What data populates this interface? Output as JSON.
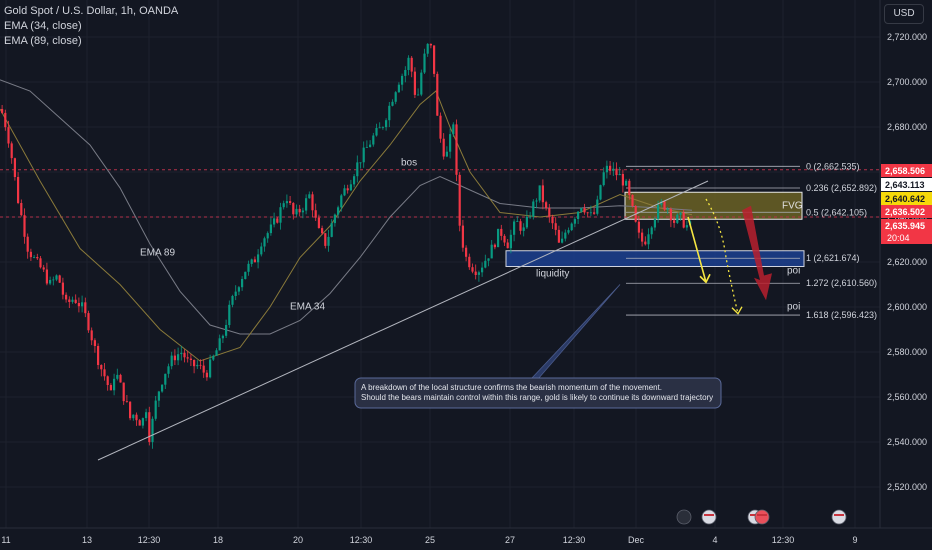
{
  "header": {
    "title": "Gold Spot / U.S. Dollar, 1h, OANDA",
    "indicators": [
      "EMA (34, close)",
      "EMA (89, close)"
    ],
    "currency_button": "USD"
  },
  "chart_data": {
    "type": "candlestick",
    "symbol": "Gold Spot / U.S. Dollar",
    "timeframe": "1h",
    "ylim": [
      2514,
      2730
    ],
    "y_ticks": [
      2520,
      2540,
      2560,
      2580,
      2600,
      2620,
      2640,
      2660,
      2680,
      2700,
      2720
    ],
    "y_tick_labels": [
      "2,520.000",
      "2,540.000",
      "2,560.000",
      "2,580.000",
      "2,600.000",
      "2,620.000",
      "2,640.000",
      "2,660.000",
      "2,680.000",
      "2,700.000",
      "2,720.000"
    ],
    "x_tick_labels": [
      "11",
      "13",
      "12:30",
      "18",
      "20",
      "12:30",
      "25",
      "27",
      "12:30",
      "Dec",
      "4",
      "12:30",
      "9"
    ],
    "price_anchors": [
      [
        0,
        2688
      ],
      [
        5,
        2686
      ],
      [
        12,
        2672
      ],
      [
        20,
        2648
      ],
      [
        30,
        2626
      ],
      [
        38,
        2620
      ],
      [
        45,
        2616
      ],
      [
        52,
        2610
      ],
      [
        60,
        2614
      ],
      [
        68,
        2601
      ],
      [
        76,
        2604
      ],
      [
        84,
        2600
      ],
      [
        90,
        2593
      ],
      [
        96,
        2583
      ],
      [
        102,
        2574
      ],
      [
        108,
        2568
      ],
      [
        113,
        2561
      ],
      [
        117,
        2572
      ],
      [
        121,
        2567
      ],
      [
        126,
        2560
      ],
      [
        130,
        2555
      ],
      [
        133,
        2549
      ],
      [
        136,
        2553
      ],
      [
        140,
        2550
      ],
      [
        144,
        2548
      ],
      [
        148,
        2556
      ],
      [
        152,
        2540
      ],
      [
        156,
        2554
      ],
      [
        162,
        2565
      ],
      [
        168,
        2572
      ],
      [
        176,
        2578
      ],
      [
        184,
        2580
      ],
      [
        192,
        2574
      ],
      [
        200,
        2574
      ],
      [
        208,
        2570
      ],
      [
        216,
        2578
      ],
      [
        224,
        2586
      ],
      [
        232,
        2600
      ],
      [
        240,
        2610
      ],
      [
        248,
        2617
      ],
      [
        256,
        2620
      ],
      [
        264,
        2630
      ],
      [
        272,
        2634
      ],
      [
        280,
        2640
      ],
      [
        288,
        2650
      ],
      [
        296,
        2640
      ],
      [
        304,
        2644
      ],
      [
        312,
        2650
      ],
      [
        320,
        2634
      ],
      [
        328,
        2628
      ],
      [
        336,
        2640
      ],
      [
        344,
        2650
      ],
      [
        352,
        2656
      ],
      [
        360,
        2664
      ],
      [
        368,
        2670
      ],
      [
        376,
        2676
      ],
      [
        384,
        2680
      ],
      [
        392,
        2690
      ],
      [
        400,
        2700
      ],
      [
        408,
        2706
      ],
      [
        412,
        2712
      ],
      [
        416,
        2696
      ],
      [
        420,
        2694
      ],
      [
        424,
        2706
      ],
      [
        428,
        2714
      ],
      [
        432,
        2718
      ],
      [
        436,
        2706
      ],
      [
        440,
        2680
      ],
      [
        444,
        2672
      ],
      [
        448,
        2666
      ],
      [
        452,
        2674
      ],
      [
        456,
        2684
      ],
      [
        460,
        2642
      ],
      [
        464,
        2630
      ],
      [
        468,
        2622
      ],
      [
        474,
        2618
      ],
      [
        480,
        2616
      ],
      [
        486,
        2620
      ],
      [
        494,
        2626
      ],
      [
        502,
        2634
      ],
      [
        510,
        2628
      ],
      [
        518,
        2638
      ],
      [
        526,
        2634
      ],
      [
        534,
        2644
      ],
      [
        542,
        2652
      ],
      [
        550,
        2640
      ],
      [
        556,
        2636
      ],
      [
        562,
        2626
      ],
      [
        568,
        2634
      ],
      [
        576,
        2640
      ],
      [
        584,
        2646
      ],
      [
        592,
        2640
      ],
      [
        598,
        2642
      ],
      [
        604,
        2658
      ],
      [
        610,
        2662
      ],
      [
        616,
        2660
      ],
      [
        622,
        2658
      ],
      [
        628,
        2654
      ],
      [
        634,
        2644
      ],
      [
        640,
        2632
      ],
      [
        646,
        2628
      ],
      [
        652,
        2636
      ],
      [
        658,
        2642
      ],
      [
        664,
        2646
      ],
      [
        670,
        2644
      ],
      [
        676,
        2638
      ],
      [
        682,
        2640
      ],
      [
        688,
        2636
      ],
      [
        692,
        2636
      ]
    ],
    "ema89_points": [
      [
        0,
        2701
      ],
      [
        30,
        2696
      ],
      [
        60,
        2684
      ],
      [
        90,
        2672
      ],
      [
        120,
        2653
      ],
      [
        150,
        2628
      ],
      [
        180,
        2607
      ],
      [
        210,
        2592
      ],
      [
        240,
        2588
      ],
      [
        270,
        2588
      ],
      [
        300,
        2594
      ],
      [
        330,
        2606
      ],
      [
        360,
        2622
      ],
      [
        390,
        2640
      ],
      [
        420,
        2654
      ],
      [
        440,
        2658
      ],
      [
        460,
        2654
      ],
      [
        500,
        2646
      ],
      [
        540,
        2644
      ],
      [
        580,
        2644
      ],
      [
        620,
        2645
      ],
      [
        660,
        2644
      ],
      [
        692,
        2643
      ]
    ],
    "ema34_points": [
      [
        0,
        2688
      ],
      [
        40,
        2656
      ],
      [
        80,
        2626
      ],
      [
        120,
        2610
      ],
      [
        160,
        2590
      ],
      [
        200,
        2576
      ],
      [
        240,
        2582
      ],
      [
        270,
        2600
      ],
      [
        300,
        2622
      ],
      [
        330,
        2636
      ],
      [
        360,
        2656
      ],
      [
        390,
        2672
      ],
      [
        420,
        2690
      ],
      [
        436,
        2696
      ],
      [
        450,
        2680
      ],
      [
        470,
        2660
      ],
      [
        500,
        2642
      ],
      [
        540,
        2640
      ],
      [
        580,
        2642
      ],
      [
        620,
        2650
      ],
      [
        660,
        2644
      ],
      [
        692,
        2641
      ]
    ],
    "trendline": {
      "from": [
        98,
        2532
      ],
      "to": [
        708,
        2656
      ]
    },
    "dashed_levels": [
      2661,
      2640
    ],
    "fib_levels": [
      {
        "label": "0 (2,662.535)",
        "price": 2662.535
      },
      {
        "label": "0.236 (2,652.892)",
        "price": 2652.892
      },
      {
        "label": "0.5 (2,642.105)",
        "price": 2642.105
      },
      {
        "label": "1 (2,621.674)",
        "price": 2621.674
      },
      {
        "label": "1.272 (2,610.560)",
        "price": 2610.56
      },
      {
        "label": "1.618 (2,596.423)",
        "price": 2596.423
      }
    ],
    "fvg_zone": {
      "label": "FVG",
      "top": 2651,
      "bottom": 2639,
      "x_from": 625,
      "x_to": 802
    },
    "liquidity_zone": {
      "label": "liquidity",
      "top": 2625,
      "bottom": 2618,
      "x_from": 506,
      "x_to": 804
    },
    "annotations": [
      {
        "text": "bos",
        "x": 401,
        "price": 2663
      },
      {
        "text": "EMA 89",
        "x": 140,
        "price": 2623
      },
      {
        "text": "EMA 34",
        "x": 290,
        "price": 2599
      },
      {
        "text": "poi",
        "x": 787,
        "price": 2615
      },
      {
        "text": "poi",
        "x": 787,
        "price": 2599
      }
    ],
    "callout": {
      "lines": [
        "A breakdown of the local structure confirms the bearish momentum of the movement.",
        "Should the bears maintain control within this range, gold is likely to continue its downward trajectory"
      ]
    },
    "price_tags": [
      {
        "label": "2,658.506",
        "price": 2658.506,
        "color": "#f23645"
      },
      {
        "label": "2,643.113",
        "price": 2643.113,
        "color": "#ffffff"
      },
      {
        "label": "2,640.642",
        "price": 2640.642,
        "color": "#f5d90a"
      },
      {
        "label": "2,636.502",
        "price": 2636.502,
        "color": "#f23645"
      },
      {
        "label": "2,635.945",
        "price": 2635.945,
        "color": "#f23645"
      }
    ],
    "countdown": "20:04",
    "colors": {
      "background": "#131722",
      "up": "#089981",
      "down": "#f23645",
      "ema34": "#8a7a3a",
      "ema89": "#787b86",
      "fvg": "#6b6224",
      "liquidity": "#1c3f8f",
      "grid": "#1e222d",
      "axis_text": "#d1d4dc"
    }
  }
}
